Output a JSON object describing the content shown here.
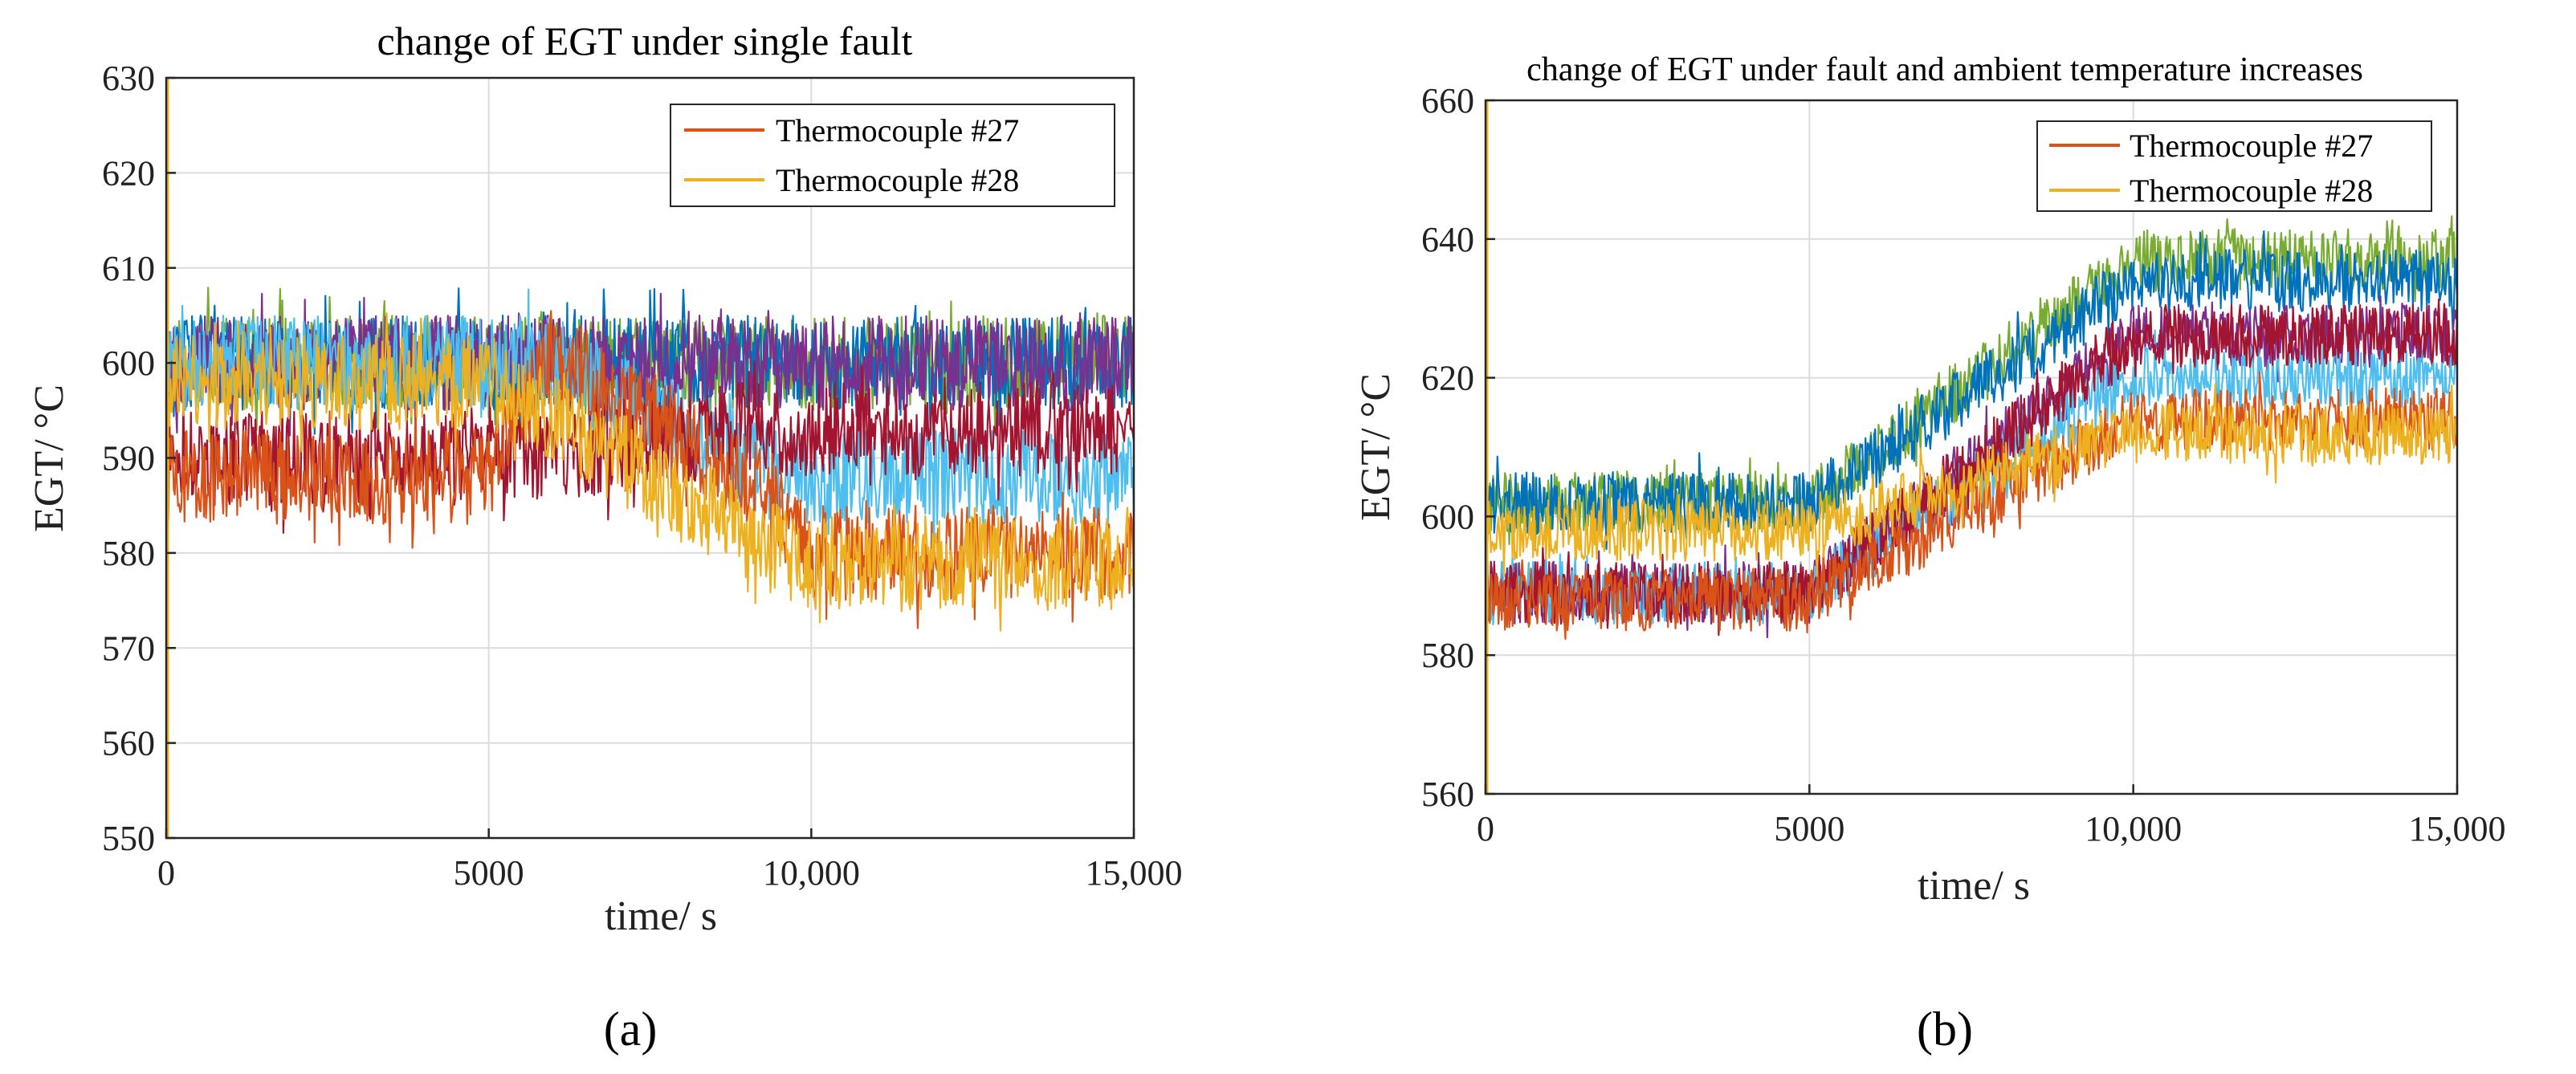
{
  "chart_data": [
    {
      "type": "line",
      "panel_label": "(a)",
      "title": "change of EGT under single fault",
      "xlabel": "time/ s",
      "ylabel": "EGT/ °C",
      "xlim": [
        0,
        15000
      ],
      "ylim": [
        550,
        630
      ],
      "xticks": [
        0,
        5000,
        10000,
        15000
      ],
      "xtick_labels": [
        "0",
        "5000",
        "10,000",
        "15,000"
      ],
      "yticks": [
        550,
        560,
        570,
        580,
        590,
        600,
        610,
        620,
        630
      ],
      "ytick_labels": [
        "550",
        "560",
        "570",
        "580",
        "590",
        "600",
        "610",
        "620",
        "630"
      ],
      "grid": true,
      "legend": {
        "location": "top-right",
        "entries": [
          "Thermocouple #27",
          "Thermocouple #28"
        ]
      },
      "noise_band": 10,
      "series": [
        {
          "name": "green band",
          "color": "#77AC30",
          "x": [
            0,
            5000,
            15000
          ],
          "values": [
            600,
            600,
            600
          ]
        },
        {
          "name": "blue band",
          "color": "#0072BD",
          "x": [
            0,
            5000,
            15000
          ],
          "values": [
            600,
            600,
            600
          ]
        },
        {
          "name": "purple band",
          "color": "#7E2F8E",
          "x": [
            0,
            5000,
            15000
          ],
          "values": [
            600,
            600,
            600
          ]
        },
        {
          "name": "cyan band",
          "color": "#4DBEEE",
          "x": [
            0,
            6000,
            9500,
            15000
          ],
          "values": [
            600,
            600,
            588,
            588
          ]
        },
        {
          "name": "dark-red band",
          "color": "#A2142F",
          "x": [
            0,
            6000,
            9000,
            15000
          ],
          "values": [
            590,
            590,
            593,
            593
          ]
        },
        {
          "name": "Thermocouple #27",
          "color": "#D95319",
          "x": [
            0,
            5000,
            6000,
            9500,
            10000,
            15000
          ],
          "values": [
            588,
            588,
            601,
            585,
            580,
            580
          ]
        },
        {
          "name": "Thermocouple #28",
          "color": "#EDB120",
          "x": [
            0,
            5000,
            6000,
            9500,
            10000,
            15000
          ],
          "values": [
            598,
            598,
            594,
            580,
            579,
            579
          ]
        }
      ]
    },
    {
      "type": "line",
      "panel_label": "(b)",
      "title": "change of EGT under fault and ambient temperature increases",
      "xlabel": "time/ s",
      "ylabel": "EGT/ °C",
      "xlim": [
        0,
        15000
      ],
      "ylim": [
        560,
        660
      ],
      "xticks": [
        0,
        5000,
        10000,
        15000
      ],
      "xtick_labels": [
        "0",
        "5000",
        "10,000",
        "15,000"
      ],
      "yticks": [
        560,
        580,
        600,
        620,
        640,
        660
      ],
      "ytick_labels": [
        "560",
        "580",
        "600",
        "620",
        "640",
        "660"
      ],
      "grid": true,
      "legend": {
        "location": "top-right",
        "entries": [
          "Thermocouple #27",
          "Thermocouple #28"
        ]
      },
      "noise_band": 9,
      "series": [
        {
          "name": "green band",
          "color": "#77AC30",
          "x": [
            0,
            5000,
            10000,
            15000
          ],
          "values": [
            602,
            602,
            637,
            637
          ]
        },
        {
          "name": "blue band",
          "color": "#0072BD",
          "x": [
            0,
            5000,
            10000,
            15000
          ],
          "values": [
            602,
            602,
            634,
            634
          ]
        },
        {
          "name": "purple band",
          "color": "#7E2F8E",
          "x": [
            0,
            5000,
            10000,
            15000
          ],
          "values": [
            589,
            589,
            626,
            626
          ]
        },
        {
          "name": "cyan band",
          "color": "#4DBEEE",
          "x": [
            0,
            5000,
            10000,
            15000
          ],
          "values": [
            589,
            589,
            620,
            620
          ]
        },
        {
          "name": "dark-red band",
          "color": "#A2142F",
          "x": [
            0,
            5000,
            10000,
            15000
          ],
          "values": [
            589,
            589,
            626,
            626
          ]
        },
        {
          "name": "Thermocouple #27",
          "color": "#D95319",
          "x": [
            0,
            5000,
            10000,
            15000
          ],
          "values": [
            588,
            588,
            614,
            614
          ]
        },
        {
          "name": "Thermocouple #28",
          "color": "#EDB120",
          "x": [
            0,
            5000,
            10000,
            15000
          ],
          "values": [
            598,
            598,
            612,
            612
          ]
        }
      ]
    }
  ]
}
